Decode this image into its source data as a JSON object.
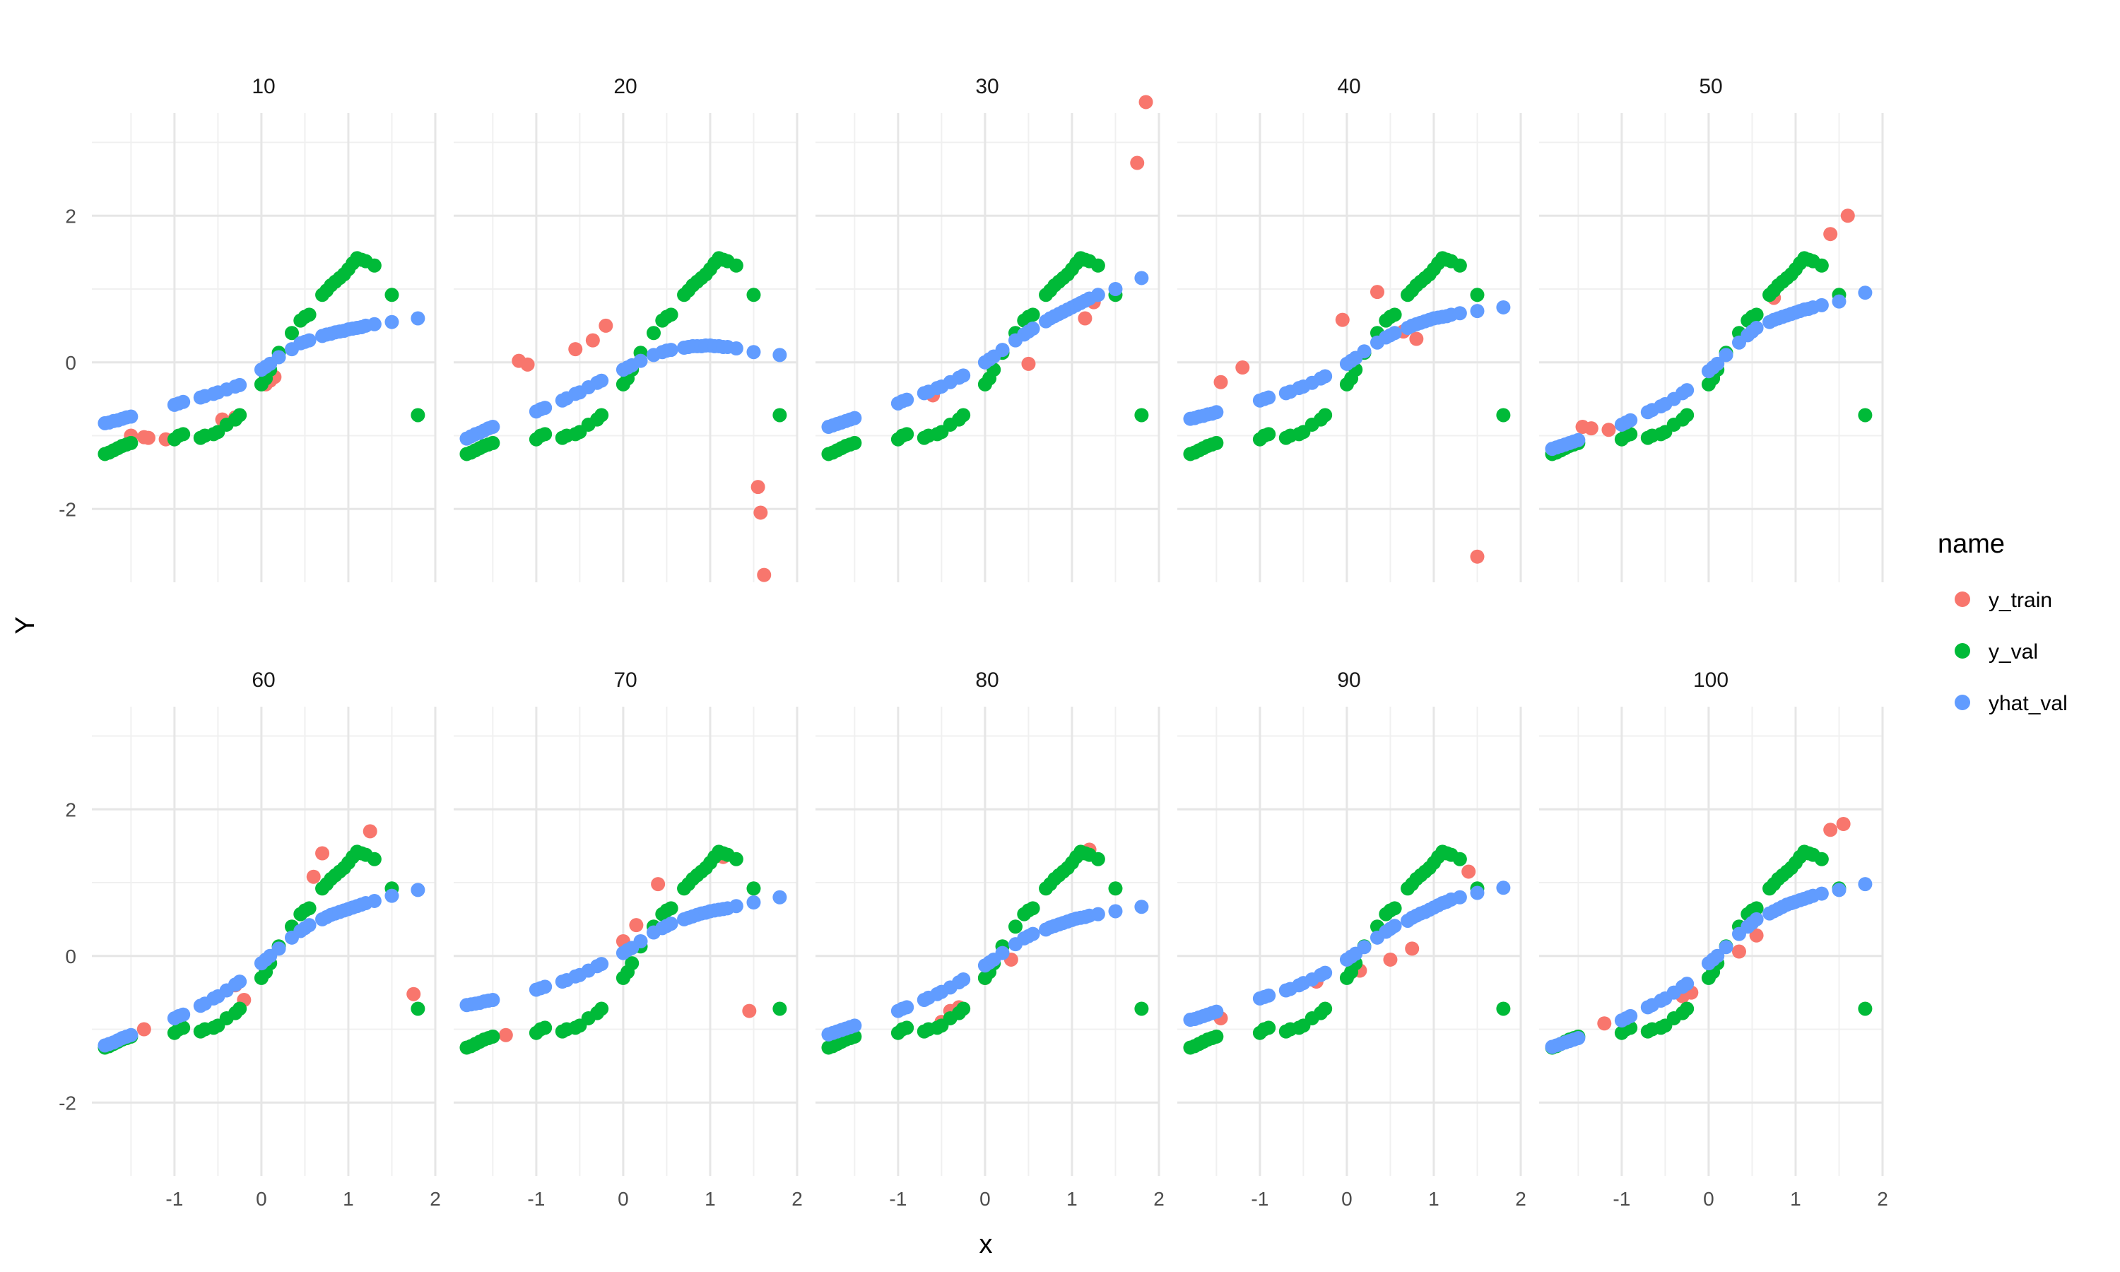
{
  "chart_data": {
    "type": "scatter",
    "xlabel": "x",
    "ylabel": "Y",
    "facet_layout": {
      "rows": 2,
      "cols": 5
    },
    "xlim": [
      -1.95,
      2.0
    ],
    "ylim": [
      -3.0,
      3.4
    ],
    "x_ticks": [
      -1,
      0,
      1,
      2
    ],
    "y_ticks": [
      -2,
      0,
      2
    ],
    "grid": true,
    "legend": {
      "title": "name",
      "position": "right",
      "entries": [
        {
          "label": "y_train",
          "color": "#F8766D"
        },
        {
          "label": "y_val",
          "color": "#00BA38"
        },
        {
          "label": "yhat_val",
          "color": "#619CFF"
        }
      ]
    },
    "val_x": [
      -1.8,
      -1.75,
      -1.7,
      -1.65,
      -1.6,
      -1.55,
      -1.5,
      -1.0,
      -0.95,
      -0.9,
      -0.7,
      -0.65,
      -0.55,
      -0.5,
      -0.4,
      -0.3,
      -0.25,
      0.0,
      0.05,
      0.1,
      0.2,
      0.35,
      0.45,
      0.5,
      0.55,
      0.7,
      0.75,
      0.8,
      0.85,
      0.9,
      0.95,
      1.0,
      1.05,
      1.1,
      1.15,
      1.2,
      1.3,
      1.5,
      1.8
    ],
    "y_val": [
      -1.25,
      -1.23,
      -1.2,
      -1.17,
      -1.14,
      -1.12,
      -1.1,
      -1.05,
      -1.0,
      -0.98,
      -1.03,
      -1.0,
      -0.98,
      -0.95,
      -0.85,
      -0.78,
      -0.72,
      -0.3,
      -0.22,
      -0.1,
      0.13,
      0.4,
      0.57,
      0.62,
      0.65,
      0.92,
      0.98,
      1.05,
      1.1,
      1.15,
      1.2,
      1.27,
      1.35,
      1.42,
      1.4,
      1.38,
      1.32,
      0.92,
      -0.72
    ],
    "panels": [
      {
        "label": "10",
        "y_train_x": [
          -1.5,
          -1.35,
          -1.3,
          -1.1,
          -0.45,
          -0.3,
          0.05,
          0.1,
          0.15
        ],
        "y_train": [
          -1.0,
          -1.02,
          -1.03,
          -1.05,
          -0.78,
          -0.75,
          -0.3,
          -0.25,
          -0.2
        ],
        "yhat_val": [
          -0.83,
          -0.82,
          -0.8,
          -0.79,
          -0.77,
          -0.75,
          -0.74,
          -0.58,
          -0.56,
          -0.54,
          -0.48,
          -0.46,
          -0.43,
          -0.41,
          -0.37,
          -0.33,
          -0.31,
          -0.1,
          -0.06,
          -0.02,
          0.07,
          0.18,
          0.26,
          0.28,
          0.3,
          0.36,
          0.38,
          0.39,
          0.41,
          0.42,
          0.43,
          0.45,
          0.46,
          0.47,
          0.48,
          0.5,
          0.52,
          0.55,
          0.6
        ]
      },
      {
        "label": "20",
        "y_train_x": [
          -1.2,
          -1.1,
          -0.55,
          -0.35,
          -0.2,
          1.55,
          1.58,
          1.62
        ],
        "y_train": [
          0.02,
          -0.03,
          0.18,
          0.3,
          0.5,
          -1.7,
          -2.05,
          -2.9
        ],
        "yhat_val": [
          -1.04,
          -1.01,
          -0.98,
          -0.96,
          -0.93,
          -0.9,
          -0.88,
          -0.67,
          -0.64,
          -0.62,
          -0.52,
          -0.49,
          -0.43,
          -0.41,
          -0.34,
          -0.28,
          -0.25,
          -0.1,
          -0.07,
          -0.04,
          0.02,
          0.1,
          0.14,
          0.16,
          0.17,
          0.2,
          0.21,
          0.22,
          0.22,
          0.22,
          0.23,
          0.23,
          0.22,
          0.22,
          0.21,
          0.21,
          0.19,
          0.14,
          0.1
        ]
      },
      {
        "label": "30",
        "y_train_x": [
          -0.6,
          0.5,
          1.15,
          1.25,
          1.75,
          1.85
        ],
        "y_train": [
          -0.45,
          -0.02,
          0.6,
          0.82,
          2.72,
          3.55
        ],
        "yhat_val": [
          -0.88,
          -0.86,
          -0.84,
          -0.82,
          -0.8,
          -0.78,
          -0.76,
          -0.56,
          -0.53,
          -0.51,
          -0.42,
          -0.4,
          -0.35,
          -0.33,
          -0.27,
          -0.21,
          -0.18,
          0.0,
          0.04,
          0.08,
          0.17,
          0.3,
          0.38,
          0.42,
          0.46,
          0.56,
          0.6,
          0.63,
          0.66,
          0.69,
          0.72,
          0.75,
          0.78,
          0.81,
          0.84,
          0.87,
          0.92,
          1.0,
          1.15
        ]
      },
      {
        "label": "40",
        "y_train_x": [
          -1.45,
          -1.2,
          -0.05,
          0.35,
          0.65,
          0.8,
          1.5
        ],
        "y_train": [
          -0.27,
          -0.07,
          0.58,
          0.96,
          0.42,
          0.32,
          -2.65
        ],
        "yhat_val": [
          -0.77,
          -0.76,
          -0.74,
          -0.73,
          -0.71,
          -0.7,
          -0.68,
          -0.52,
          -0.5,
          -0.48,
          -0.42,
          -0.4,
          -0.35,
          -0.33,
          -0.28,
          -0.22,
          -0.19,
          -0.02,
          0.02,
          0.06,
          0.15,
          0.27,
          0.34,
          0.37,
          0.4,
          0.47,
          0.5,
          0.52,
          0.54,
          0.56,
          0.58,
          0.6,
          0.61,
          0.62,
          0.63,
          0.65,
          0.67,
          0.7,
          0.75
        ]
      },
      {
        "label": "50",
        "y_train_x": [
          -1.45,
          -1.35,
          -1.15,
          0.05,
          0.75,
          1.4,
          1.6
        ],
        "y_train": [
          -0.88,
          -0.9,
          -0.92,
          -0.2,
          0.88,
          1.75,
          2.0
        ],
        "yhat_val": [
          -1.18,
          -1.16,
          -1.14,
          -1.12,
          -1.1,
          -1.08,
          -1.06,
          -0.85,
          -0.82,
          -0.79,
          -0.68,
          -0.65,
          -0.6,
          -0.57,
          -0.5,
          -0.42,
          -0.38,
          -0.12,
          -0.07,
          -0.02,
          0.1,
          0.27,
          0.37,
          0.42,
          0.47,
          0.55,
          0.58,
          0.6,
          0.62,
          0.64,
          0.66,
          0.68,
          0.7,
          0.72,
          0.73,
          0.75,
          0.78,
          0.83,
          0.95
        ]
      },
      {
        "label": "60",
        "y_train_x": [
          -1.35,
          -0.3,
          -0.2,
          0.6,
          0.7,
          1.25,
          1.75
        ],
        "y_train": [
          -1.0,
          -0.4,
          -0.6,
          1.08,
          1.4,
          1.7,
          -0.52
        ],
        "yhat_val": [
          -1.22,
          -1.2,
          -1.18,
          -1.15,
          -1.12,
          -1.1,
          -1.08,
          -0.85,
          -0.82,
          -0.8,
          -0.68,
          -0.65,
          -0.58,
          -0.55,
          -0.47,
          -0.39,
          -0.35,
          -0.1,
          -0.05,
          0.0,
          0.1,
          0.25,
          0.34,
          0.38,
          0.42,
          0.5,
          0.53,
          0.56,
          0.58,
          0.6,
          0.62,
          0.64,
          0.66,
          0.68,
          0.7,
          0.72,
          0.75,
          0.82,
          0.9
        ]
      },
      {
        "label": "70",
        "y_train_x": [
          -1.35,
          0.0,
          0.15,
          0.4,
          1.15,
          1.45
        ],
        "y_train": [
          -1.08,
          0.2,
          0.42,
          0.98,
          1.35,
          -0.75
        ],
        "yhat_val": [
          -0.67,
          -0.66,
          -0.65,
          -0.64,
          -0.62,
          -0.61,
          -0.6,
          -0.46,
          -0.44,
          -0.42,
          -0.35,
          -0.33,
          -0.28,
          -0.26,
          -0.2,
          -0.14,
          -0.11,
          0.04,
          0.08,
          0.11,
          0.2,
          0.32,
          0.38,
          0.41,
          0.44,
          0.5,
          0.52,
          0.54,
          0.56,
          0.58,
          0.59,
          0.61,
          0.62,
          0.63,
          0.64,
          0.65,
          0.68,
          0.73,
          0.8
        ]
      },
      {
        "label": "80",
        "y_train_x": [
          -0.5,
          -0.4,
          -0.3,
          0.0,
          0.3,
          1.2
        ],
        "y_train": [
          -0.9,
          -0.75,
          -0.7,
          -0.3,
          -0.05,
          1.45
        ],
        "yhat_val": [
          -1.07,
          -1.05,
          -1.03,
          -1.01,
          -0.99,
          -0.97,
          -0.95,
          -0.75,
          -0.72,
          -0.7,
          -0.6,
          -0.57,
          -0.52,
          -0.49,
          -0.43,
          -0.36,
          -0.32,
          -0.13,
          -0.09,
          -0.05,
          0.04,
          0.16,
          0.24,
          0.27,
          0.3,
          0.36,
          0.39,
          0.41,
          0.43,
          0.45,
          0.47,
          0.49,
          0.51,
          0.52,
          0.53,
          0.55,
          0.57,
          0.61,
          0.67
        ]
      },
      {
        "label": "90",
        "y_train_x": [
          -1.45,
          -0.35,
          0.15,
          0.5,
          0.75,
          1.4
        ],
        "y_train": [
          -0.85,
          -0.35,
          -0.2,
          -0.05,
          0.1,
          1.15
        ],
        "yhat_val": [
          -0.87,
          -0.86,
          -0.84,
          -0.82,
          -0.8,
          -0.78,
          -0.76,
          -0.58,
          -0.56,
          -0.54,
          -0.47,
          -0.45,
          -0.4,
          -0.37,
          -0.32,
          -0.26,
          -0.23,
          -0.05,
          -0.01,
          0.03,
          0.12,
          0.25,
          0.33,
          0.37,
          0.41,
          0.48,
          0.52,
          0.55,
          0.58,
          0.6,
          0.63,
          0.66,
          0.69,
          0.72,
          0.74,
          0.77,
          0.8,
          0.86,
          0.93
        ]
      },
      {
        "label": "100",
        "y_train_x": [
          -1.2,
          -0.3,
          -0.2,
          0.35,
          0.55,
          1.4,
          1.55
        ],
        "y_train": [
          -0.92,
          -0.55,
          -0.5,
          0.06,
          0.28,
          1.72,
          1.8
        ],
        "yhat_val": [
          -1.24,
          -1.22,
          -1.2,
          -1.18,
          -1.16,
          -1.14,
          -1.12,
          -0.88,
          -0.85,
          -0.82,
          -0.7,
          -0.67,
          -0.61,
          -0.58,
          -0.5,
          -0.42,
          -0.38,
          -0.1,
          -0.05,
          0.0,
          0.12,
          0.3,
          0.4,
          0.45,
          0.5,
          0.58,
          0.61,
          0.64,
          0.67,
          0.7,
          0.72,
          0.74,
          0.76,
          0.78,
          0.8,
          0.82,
          0.85,
          0.9,
          0.98
        ]
      }
    ]
  }
}
